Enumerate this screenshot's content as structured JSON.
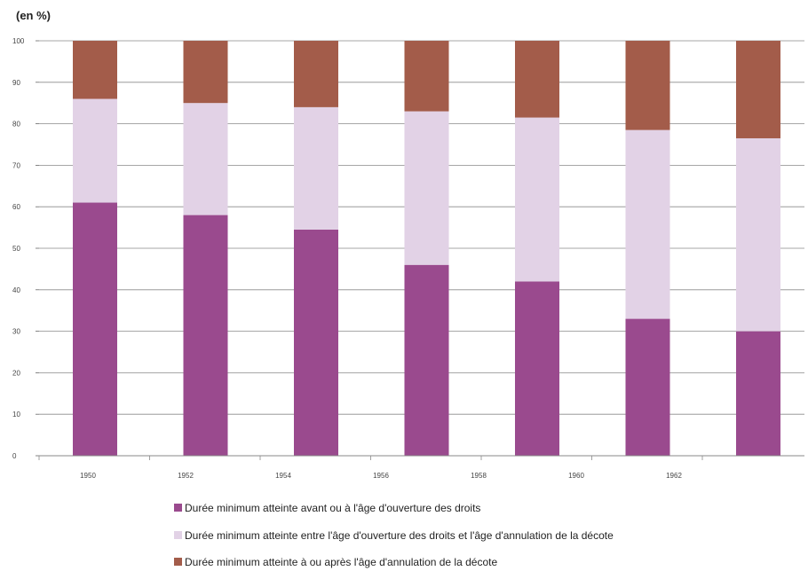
{
  "chart_data": {
    "type": "bar",
    "stacked": true,
    "unit_label": "(en %)",
    "y_ticks": [
      "0",
      "10",
      "20",
      "30",
      "40",
      "50",
      "60",
      "70",
      "80",
      "90",
      "100"
    ],
    "ylim": [
      0,
      100
    ],
    "categories": [
      "1950",
      "1952",
      "1954",
      "1956",
      "1958",
      "1960",
      "1962"
    ],
    "grid": true,
    "legend_position": "bottom",
    "series": [
      {
        "name": "Durée minimum atteinte avant ou à l'âge d'ouverture des droits",
        "color": "#9a4a8e",
        "values": [
          61,
          58,
          54.5,
          46,
          42,
          33,
          30
        ]
      },
      {
        "name": "Durée minimum atteinte entre l'âge d'ouverture des droits et l'âge d'annulation de la décote",
        "color": "#e2d2e6",
        "values": [
          25,
          27,
          29.5,
          37,
          39.5,
          45.5,
          46.5
        ]
      },
      {
        "name": "Durée minimum atteinte à ou après l'âge d'annulation de la décote",
        "color": "#a35c4a",
        "values": [
          14,
          15,
          16,
          17,
          18.5,
          21.5,
          23.5
        ]
      }
    ]
  }
}
